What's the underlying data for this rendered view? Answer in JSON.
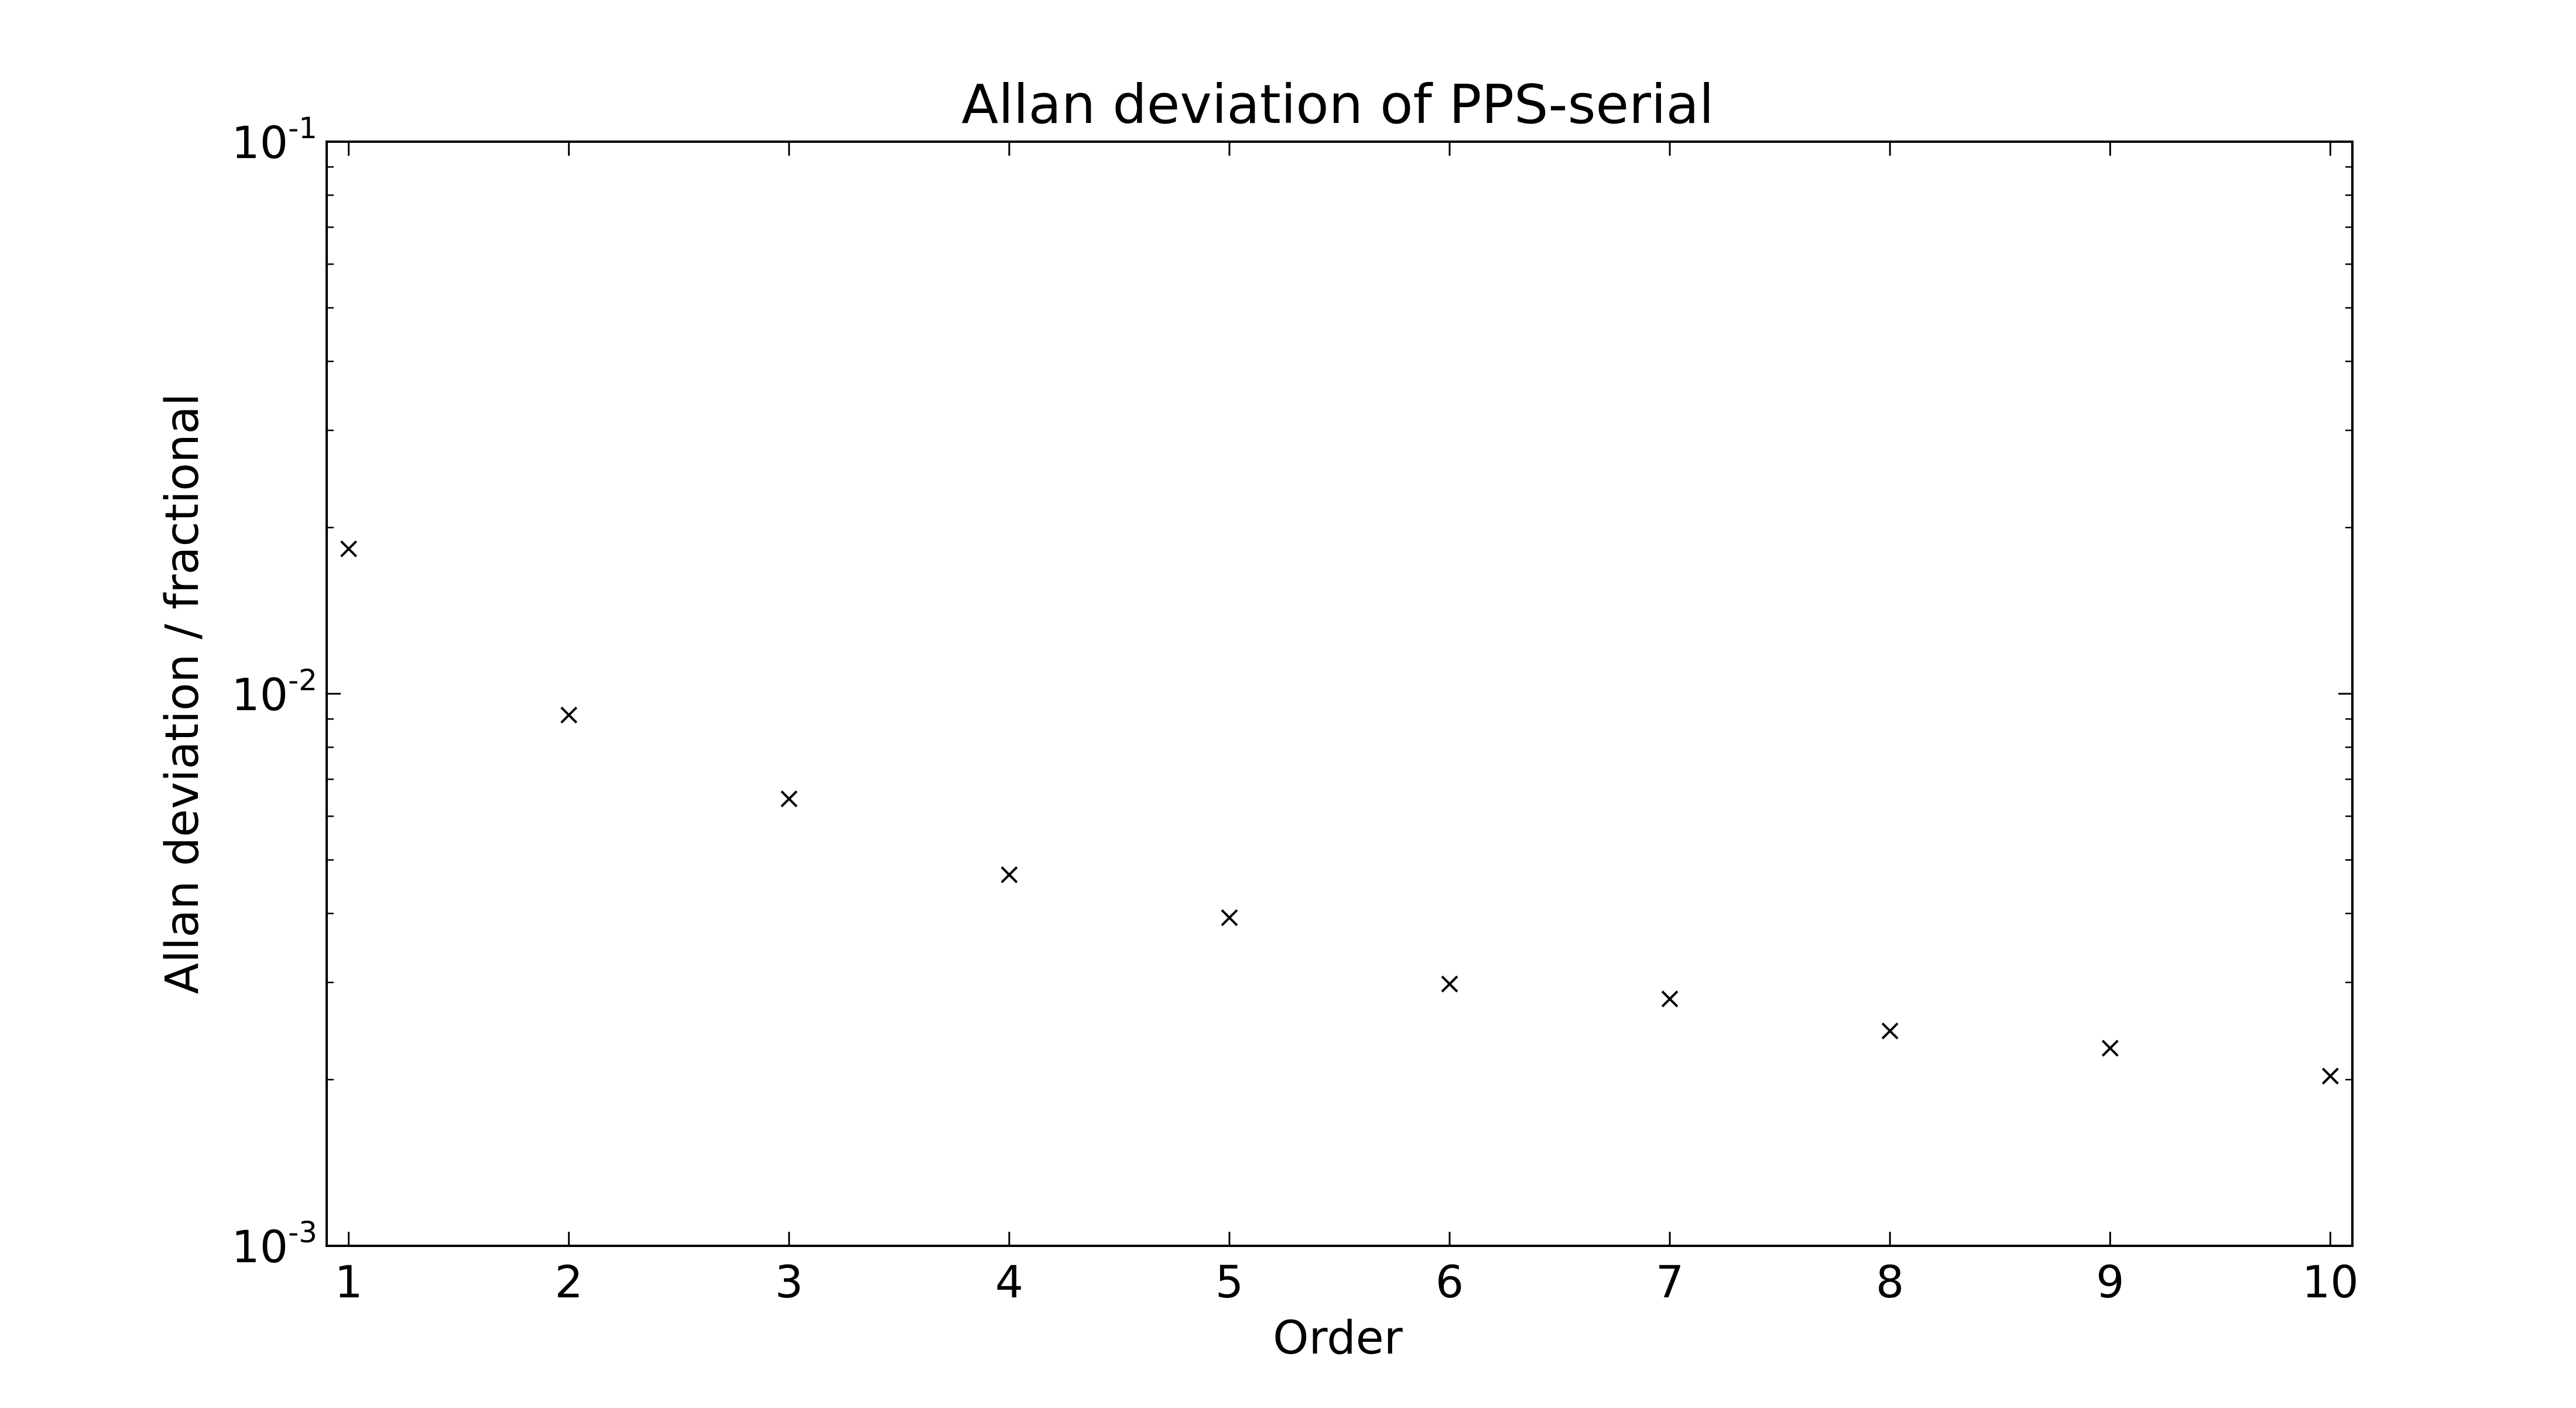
{
  "chart_data": {
    "type": "scatter",
    "title": "Allan deviation of PPS-serial",
    "xlabel": "Order",
    "ylabel": "Allan deviation / fractional",
    "xlim": [
      0.9,
      10.1
    ],
    "ylim": [
      0.001,
      0.1
    ],
    "yscale": "log",
    "grid": false,
    "marker": "x",
    "marker_color": "#000000",
    "x_ticks": [
      1,
      2,
      3,
      4,
      5,
      6,
      7,
      8,
      9,
      10
    ],
    "y_ticks": [
      {
        "value": 0.001,
        "base": "10",
        "exp": "-3"
      },
      {
        "value": 0.01,
        "base": "10",
        "exp": "-2"
      },
      {
        "value": 0.1,
        "base": "10",
        "exp": "-1"
      }
    ],
    "series": [
      {
        "x": [
          1,
          2,
          3,
          4,
          5,
          6,
          7,
          8,
          9,
          10
        ],
        "y": [
          0.0183,
          0.00915,
          0.00645,
          0.0047,
          0.00393,
          0.00298,
          0.0028,
          0.00245,
          0.00228,
          0.00203
        ]
      }
    ]
  }
}
